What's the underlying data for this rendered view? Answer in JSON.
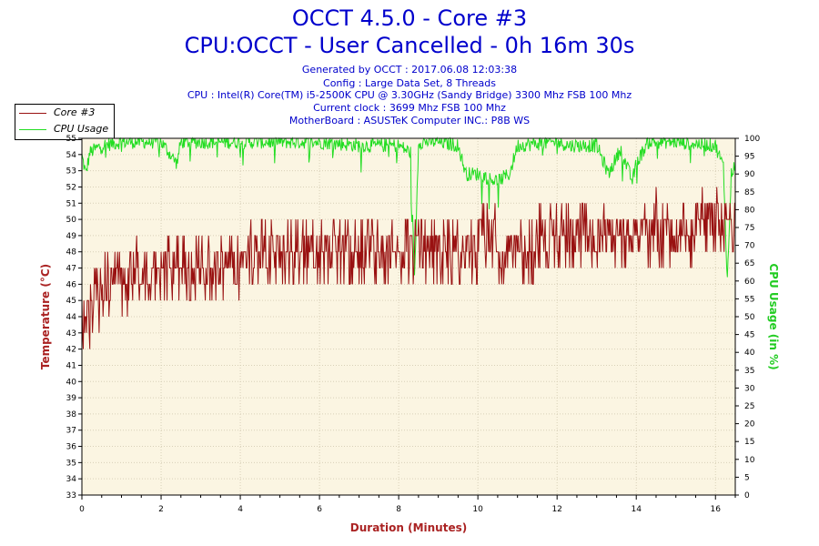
{
  "header": {
    "title_line1": "OCCT 4.5.0 - Core #3",
    "title_line2": "CPU:OCCT - User Cancelled - 0h 16m 30s",
    "info_lines": [
      "Generated by OCCT : 2017.06.08 12:03:38",
      "Config : Large Data Set, 8 Threads",
      "CPU : Intel(R) Core(TM) i5-2500K CPU @ 3.30GHz (Sandy Bridge) 3300 Mhz FSB 100 Mhz",
      "Current clock : 3699 Mhz FSB 100 Mhz",
      "MotherBoard : ASUSTeK Computer INC.: P8B WS"
    ]
  },
  "legend": {
    "core_label": "Core #3",
    "usage_label": "CPU Usage"
  },
  "colors": {
    "core": "#991111",
    "usage": "#22dd22",
    "plot_bg": "#fbf5e2",
    "grid": "#d8d0b8",
    "title": "#0000cc",
    "temp_axis": "#aa2222",
    "usage_axis": "#22cc22"
  },
  "chart_data": {
    "type": "line",
    "xlabel": "Duration (Minutes)",
    "ylabel_left": "Temperature (°C)",
    "ylabel_right": "CPU Usage (in %)",
    "xlim": [
      0,
      16.5
    ],
    "x_ticks": [
      0,
      2,
      4,
      6,
      8,
      10,
      12,
      14,
      16
    ],
    "ylim_left": [
      33,
      55
    ],
    "ylim_right": [
      0,
      100
    ],
    "y_ticks_left": [
      33,
      34,
      35,
      36,
      37,
      38,
      39,
      40,
      41,
      42,
      43,
      44,
      45,
      46,
      47,
      48,
      49,
      50,
      51,
      52,
      53,
      54,
      55
    ],
    "y_ticks_right": [
      0,
      5,
      10,
      15,
      20,
      25,
      30,
      35,
      40,
      45,
      50,
      55,
      60,
      65,
      70,
      75,
      80,
      85,
      90,
      95,
      100
    ],
    "grid": true,
    "legend_position": "top-left outside",
    "series": [
      {
        "name": "Core #3",
        "axis": "left",
        "x": [
          0,
          0.1,
          0.2,
          0.3,
          0.4,
          0.5,
          0.6,
          0.7,
          0.8,
          0.9,
          1.0,
          1.2,
          1.5,
          1.8,
          2.0,
          2.3,
          2.6,
          3.0,
          3.3,
          3.6,
          4.0,
          4.5,
          5.0,
          5.5,
          6.0,
          6.5,
          7.0,
          7.5,
          8.0,
          8.5,
          9.0,
          9.5,
          10.0,
          10.5,
          11.0,
          11.5,
          12.0,
          12.5,
          13.0,
          13.5,
          14.0,
          14.5,
          15.0,
          15.5,
          16.0,
          16.3,
          16.5
        ],
        "y": [
          43,
          44,
          43.5,
          44.5,
          45,
          45.5,
          46,
          45.5,
          46.5,
          47,
          46,
          46.5,
          47,
          46.5,
          47,
          47.5,
          47,
          47,
          46.5,
          47,
          47.5,
          48,
          47.5,
          47.5,
          48,
          48,
          47.5,
          48,
          48,
          48,
          47.5,
          48,
          48.5,
          48.5,
          48,
          48.5,
          48.5,
          49,
          48.5,
          49,
          49,
          49.5,
          49,
          49.5,
          49.5,
          50,
          50
        ]
      },
      {
        "name": "CPU Usage",
        "axis": "right",
        "x": [
          0,
          0.1,
          0.2,
          0.5,
          1.0,
          1.5,
          2.0,
          2.4,
          2.5,
          3.0,
          4.0,
          5.0,
          6.0,
          7.0,
          8.0,
          8.3,
          8.4,
          8.5,
          9.0,
          9.5,
          9.7,
          10.0,
          10.5,
          10.8,
          11.0,
          12.0,
          12.3,
          13.0,
          13.3,
          13.6,
          13.9,
          14.0,
          14.3,
          15.0,
          16.0,
          16.2,
          16.3,
          16.4,
          16.5
        ],
        "y": [
          95,
          90,
          96,
          98,
          99,
          99,
          99,
          93,
          99,
          99,
          99,
          99,
          99,
          98,
          98,
          96,
          60,
          99,
          99,
          98,
          90,
          90,
          88,
          90,
          98,
          99,
          98,
          98,
          90,
          97,
          88,
          93,
          99,
          99,
          98,
          92,
          60,
          90,
          93
        ]
      }
    ]
  }
}
